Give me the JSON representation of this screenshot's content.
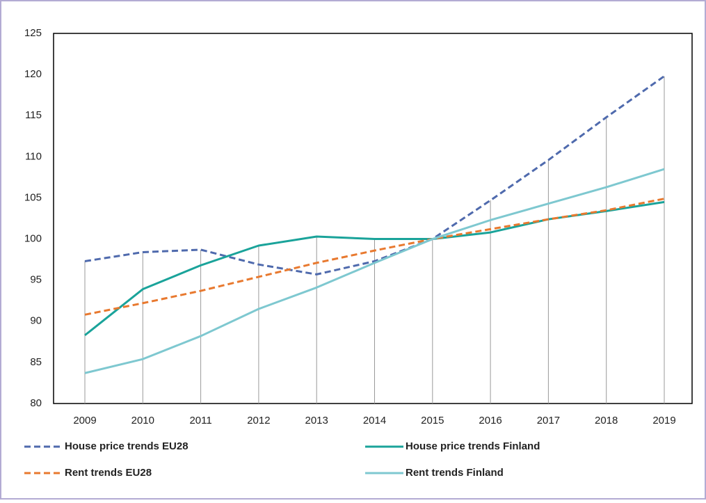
{
  "chart_data": {
    "type": "line",
    "categories": [
      "2009",
      "2010",
      "2011",
      "2012",
      "2013",
      "2014",
      "2015",
      "2016",
      "2017",
      "2018",
      "2019"
    ],
    "series": [
      {
        "name": "House price trends EU28",
        "color": "#4f6aad",
        "dashed": true,
        "values": [
          97.3,
          98.4,
          98.7,
          96.9,
          95.7,
          97.3,
          100,
          104.7,
          109.6,
          114.8,
          119.8
        ]
      },
      {
        "name": "House price trends Finland",
        "color": "#1aa39a",
        "dashed": false,
        "values": [
          88.3,
          93.9,
          96.8,
          99.2,
          100.3,
          100.0,
          100.0,
          100.8,
          102.4,
          103.4,
          104.5
        ]
      },
      {
        "name": "Rent trends EU28",
        "color": "#e8792f",
        "dashed": true,
        "values": [
          90.8,
          92.2,
          93.7,
          95.4,
          97.1,
          98.6,
          100,
          101.2,
          102.4,
          103.5,
          104.9
        ]
      },
      {
        "name": "Rent trends Finland",
        "color": "#7ec8d0",
        "dashed": false,
        "values": [
          83.7,
          85.4,
          88.2,
          91.5,
          94.1,
          97.1,
          100,
          102.3,
          104.3,
          106.3,
          108.5
        ]
      }
    ],
    "ylim": [
      80,
      125
    ],
    "yticks": [
      80,
      85,
      90,
      95,
      100,
      105,
      110,
      115,
      120,
      125
    ],
    "legend": "bottom"
  }
}
